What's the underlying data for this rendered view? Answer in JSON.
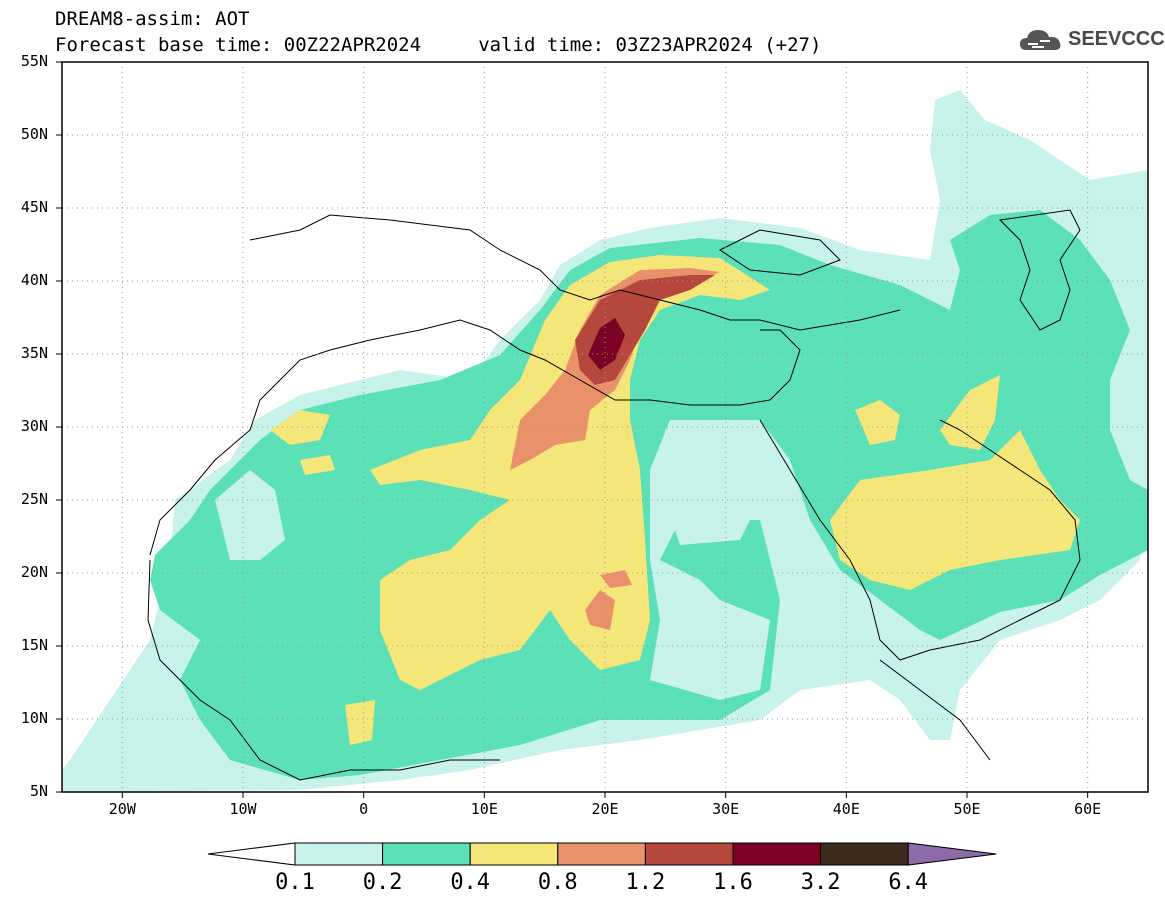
{
  "title": {
    "line1": "DREAM8-assim: AOT",
    "line2": "Forecast base time: 00Z22APR2024     valid time: 03Z23APR2024 (+27)"
  },
  "logo": {
    "text": "SEEVCCC",
    "icon": "cloud-icon"
  },
  "map": {
    "lon_range": [
      -25,
      65
    ],
    "lat_range": [
      5,
      55
    ],
    "lat_ticks": [
      "55N",
      "50N",
      "45N",
      "40N",
      "35N",
      "30N",
      "25N",
      "20N",
      "15N",
      "10N",
      "5N"
    ],
    "lon_ticks": [
      "20W",
      "10W",
      "0",
      "10E",
      "20E",
      "30E",
      "40E",
      "50E",
      "60E"
    ]
  },
  "legend": {
    "labels": [
      "0.1",
      "0.2",
      "0.4",
      "0.8",
      "1.2",
      "1.6",
      "3.2",
      "6.4"
    ],
    "colors": [
      "#c8f2ec",
      "#5ce0b8",
      "#f5e67a",
      "#e8916a",
      "#b5473c",
      "#7d0025",
      "#3d2a1c",
      "#8c6ba8"
    ],
    "under_color": "#ffffff",
    "over_color": "#8c6ba8"
  }
}
